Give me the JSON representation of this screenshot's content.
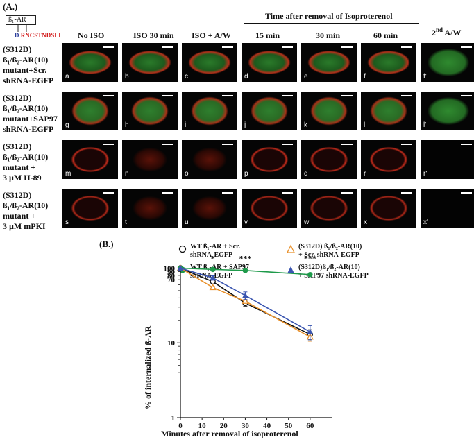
{
  "panel_a": {
    "label": "(A.)",
    "construct": {
      "box": "ß₁-AR",
      "mut": "D",
      "tail": "RNCSTNDSLL"
    },
    "time_header": "Time after removal of Isoproterenol",
    "columns": [
      "No ISO",
      "ISO 30 min",
      "ISO + A/W",
      "15 min",
      "30 min",
      "60 min",
      "2nd A/W"
    ],
    "column_second": {
      "num": "2",
      "sup": "nd",
      "rest": " A/W"
    },
    "rows": [
      {
        "label": "(S312D)\nß₁/ß₂-AR(10)\nmutant+Scr.\nshRNA-EGFP",
        "cells": [
          "a",
          "b",
          "c",
          "d",
          "e",
          "f",
          "f'"
        ]
      },
      {
        "label": "(S312D)\nß₁/ß₂-AR(10)\nmutant+SAP97\nshRNA-EGFP",
        "cells": [
          "g",
          "h",
          "i",
          "j",
          "k",
          "l",
          "l'"
        ]
      },
      {
        "label": "(S312D)\nß₁/ß₂-AR(10)\nmutant +\n3 µM H-89",
        "cells": [
          "m",
          "n",
          "o",
          "p",
          "q",
          "r",
          "r'"
        ]
      },
      {
        "label": "(S312D)\nß₁/ß₂-AR(10)\nmutant +\n3 µM mPKI",
        "cells": [
          "s",
          "t",
          "u",
          "v",
          "w",
          "x",
          "x'"
        ]
      }
    ]
  },
  "panel_b": {
    "label": "(B.)",
    "legend": [
      {
        "text": "WT ß₁-AR + Scr.\nshRNA-EGFP",
        "symbol": "open-circle",
        "color": "#111111"
      },
      {
        "text": "(S312D) ß₁/ß₂-AR(10)\n+ Scr. shRNA-EGFP",
        "symbol": "open-triangle",
        "color": "#e8902a"
      },
      {
        "text": "WT ß₁-AR + SAP97\nshRNA-EGFP",
        "symbol": "filled-circle",
        "color": "#1e9a4a"
      },
      {
        "text": "(S312D)ß₁/ß₂-AR(10)\n+ SAP97 shRNA-EGFP",
        "symbol": "filled-triangle",
        "color": "#3a55b0"
      }
    ],
    "significance": [
      "*",
      "***",
      "***"
    ]
  },
  "chart_data": {
    "type": "line",
    "title": "",
    "xlabel": "Minutes after removal of isoproterenol",
    "ylabel": "% of internalized ß-AR",
    "x": [
      0,
      15,
      30,
      60
    ],
    "x_ticks": [
      0,
      10,
      20,
      30,
      40,
      50,
      60
    ],
    "xlim": [
      0,
      70
    ],
    "y_scale": "log",
    "ylim": [
      1,
      110
    ],
    "y_ticks": [
      1,
      10,
      100
    ],
    "y_ticks_extra": [
      70,
      80,
      90
    ],
    "series": [
      {
        "name": "WT ß₁-AR + Scr. shRNA-EGFP",
        "values": [
          100,
          66,
          34,
          13
        ],
        "errors": [
          0,
          3,
          3,
          2
        ],
        "color": "#111111",
        "marker": "open-circle"
      },
      {
        "name": "(S312D) ß₁/ß₂-AR(10) + Scr. shRNA-EGFP",
        "values": [
          100,
          55,
          36,
          12
        ],
        "errors": [
          0,
          2,
          2,
          1.5
        ],
        "color": "#e8902a",
        "marker": "open-triangle"
      },
      {
        "name": "WT ß₁-AR + SAP97 shRNA-EGFP",
        "values": [
          100,
          96,
          93,
          82
        ],
        "errors": [
          0,
          2,
          2,
          4
        ],
        "color": "#1e9a4a",
        "marker": "filled-circle"
      },
      {
        "name": "(S312D)ß₁/ß₂-AR(10) + SAP97 shRNA-EGFP",
        "values": [
          100,
          74,
          43,
          14
        ],
        "errors": [
          0,
          5,
          5,
          3
        ],
        "color": "#3a55b0",
        "marker": "filled-triangle"
      }
    ],
    "annotations": [
      {
        "x": 15,
        "text": "*"
      },
      {
        "x": 30,
        "text": "***"
      },
      {
        "x": 60,
        "text": "***"
      }
    ],
    "legend_position": "top"
  }
}
